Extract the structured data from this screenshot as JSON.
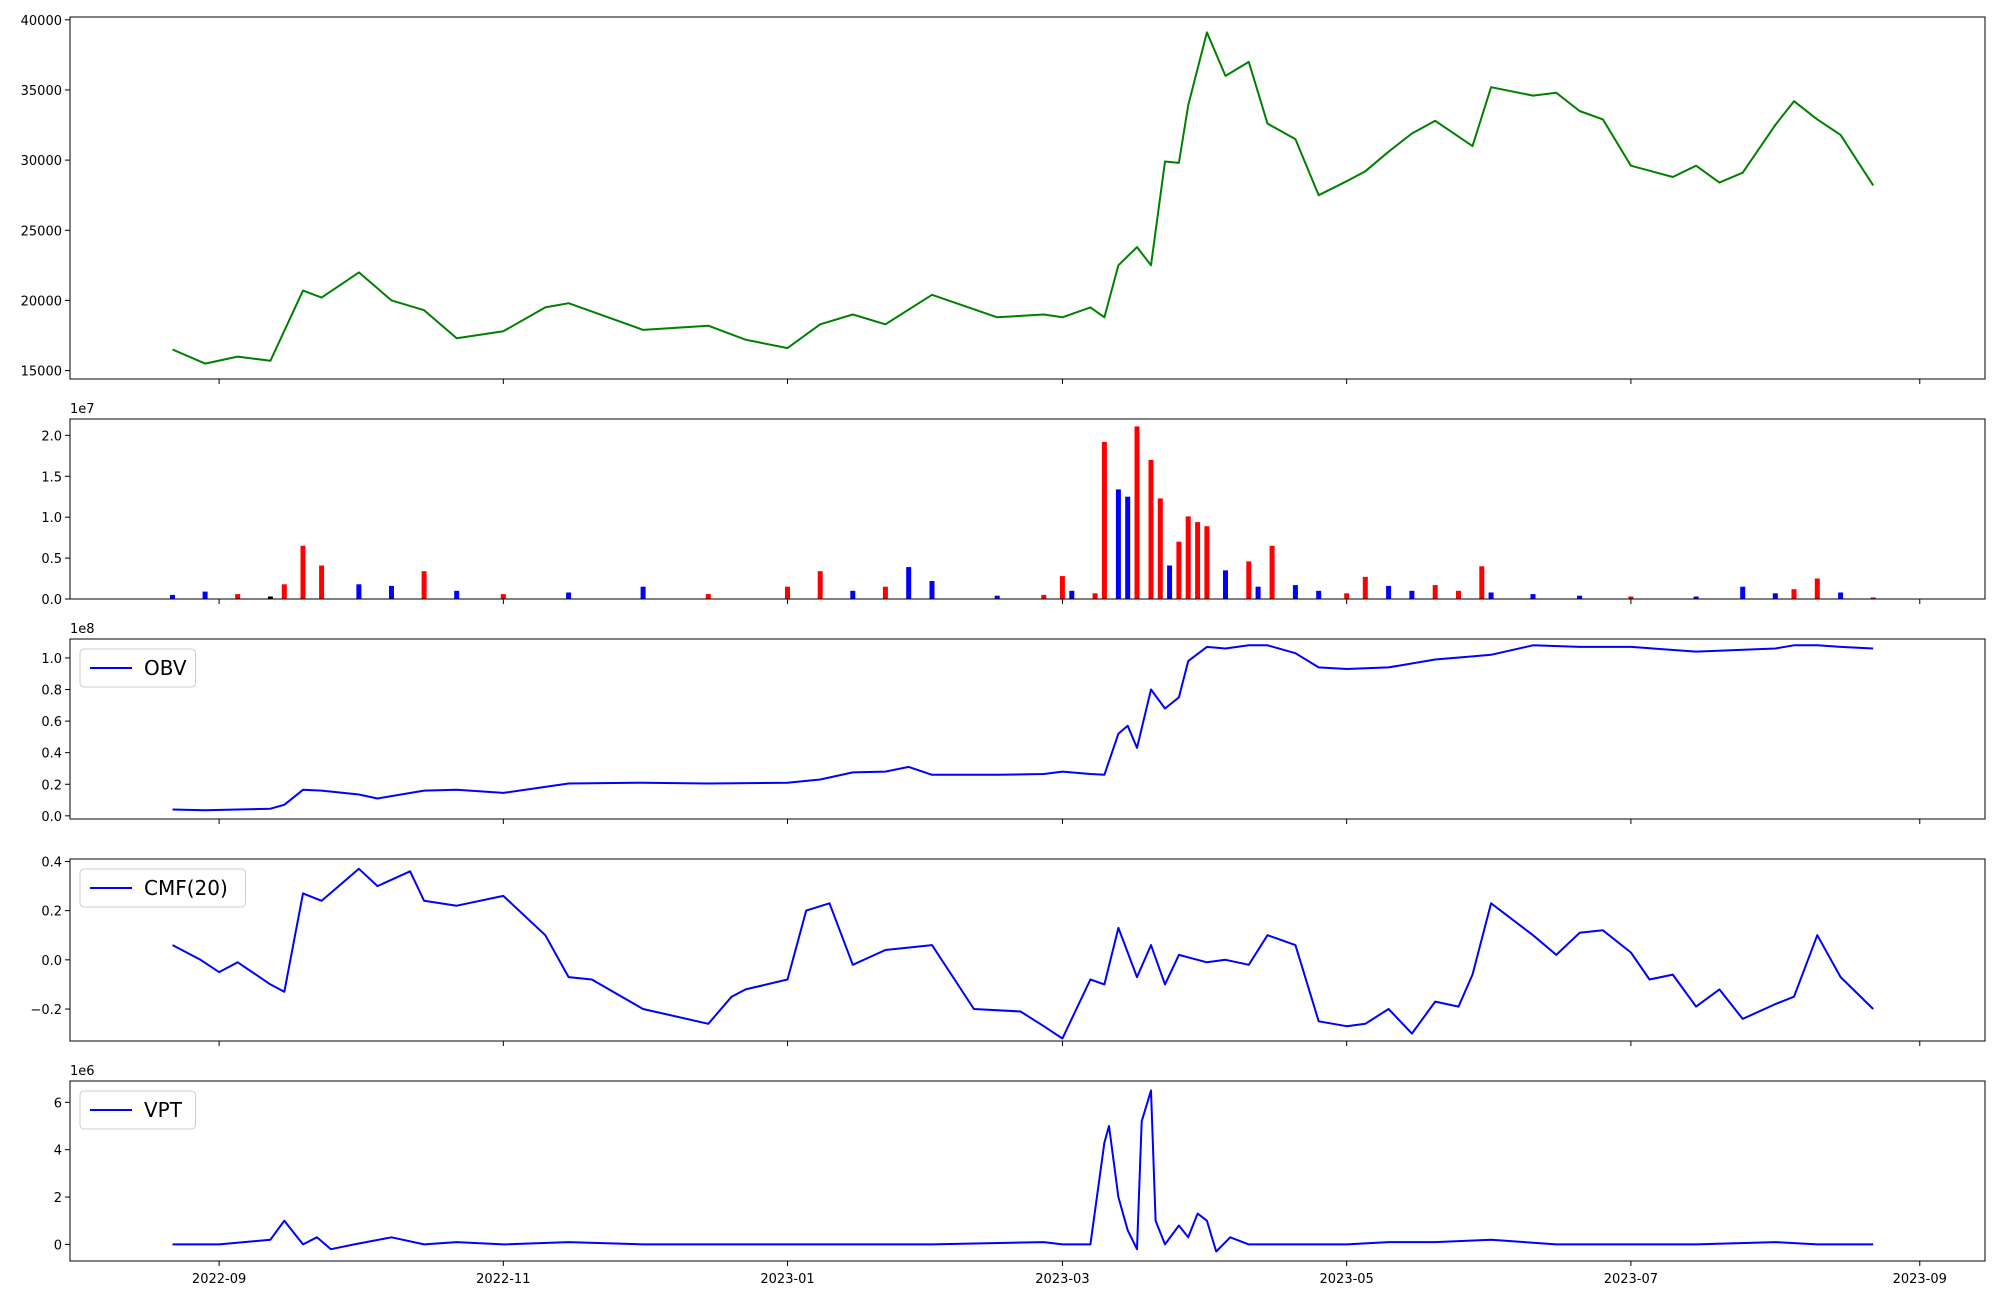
{
  "chart_data": [
    {
      "id": "price",
      "type": "line",
      "color": "#008000",
      "ylim": [
        14400,
        40200
      ],
      "yticks": [
        15000,
        20000,
        25000,
        30000,
        35000,
        40000
      ],
      "ytick_labels": [
        "15000",
        "20000",
        "25000",
        "30000",
        "35000",
        "40000"
      ],
      "multiplier": "",
      "legend": "",
      "x_dates": [
        "2022-08-22",
        "2022-08-29",
        "2022-09-05",
        "2022-09-12",
        "2022-09-19",
        "2022-09-23",
        "2022-10-01",
        "2022-10-08",
        "2022-10-15",
        "2022-10-22",
        "2022-11-01",
        "2022-11-10",
        "2022-11-15",
        "2022-12-01",
        "2022-12-15",
        "2022-12-23",
        "2023-01-01",
        "2023-01-08",
        "2023-01-15",
        "2023-01-22",
        "2023-02-01",
        "2023-02-15",
        "2023-02-25",
        "2023-03-01",
        "2023-03-07",
        "2023-03-10",
        "2023-03-13",
        "2023-03-17",
        "2023-03-20",
        "2023-03-23",
        "2023-03-26",
        "2023-03-28",
        "2023-04-01",
        "2023-04-05",
        "2023-04-10",
        "2023-04-14",
        "2023-04-20",
        "2023-04-25",
        "2023-05-01",
        "2023-05-05",
        "2023-05-10",
        "2023-05-15",
        "2023-05-20",
        "2023-05-28",
        "2023-06-01",
        "2023-06-10",
        "2023-06-15",
        "2023-06-20",
        "2023-06-25",
        "2023-07-01",
        "2023-07-10",
        "2023-07-15",
        "2023-07-20",
        "2023-07-25",
        "2023-08-01",
        "2023-08-05",
        "2023-08-10",
        "2023-08-15",
        "2023-08-22"
      ],
      "values": [
        16500,
        15500,
        16000,
        15700,
        20700,
        20200,
        22000,
        20000,
        19300,
        17300,
        17800,
        19500,
        19800,
        17900,
        18200,
        17200,
        16600,
        18300,
        19000,
        18300,
        20400,
        18800,
        19000,
        18800,
        19500,
        18800,
        22500,
        23800,
        22500,
        29900,
        29800,
        33900,
        39100,
        36000,
        37000,
        32600,
        31500,
        27500,
        28500,
        29200,
        30600,
        31900,
        32800,
        31000,
        35200,
        34600,
        34800,
        33500,
        32900,
        29600,
        28800,
        29600,
        28400,
        29100,
        32500,
        34200,
        32900,
        31800,
        28200
      ]
    },
    {
      "id": "volume",
      "type": "bar",
      "ylim": [
        0,
        22000000
      ],
      "yticks": [
        0,
        5000000,
        10000000,
        15000000,
        20000000
      ],
      "ytick_labels": [
        "0.0",
        "0.5",
        "1.0",
        "1.5",
        "2.0"
      ],
      "multiplier": "1e7",
      "legend": "",
      "bar_colors": {
        "up": "#0000ff",
        "down": "#ff0000",
        "neutral": "#000000"
      },
      "x_dates": [
        "2022-08-22",
        "2022-08-29",
        "2022-09-05",
        "2022-09-12",
        "2022-09-15",
        "2022-09-19",
        "2022-09-23",
        "2022-10-01",
        "2022-10-08",
        "2022-10-15",
        "2022-10-22",
        "2022-11-01",
        "2022-11-15",
        "2022-12-01",
        "2022-12-15",
        "2023-01-01",
        "2023-01-08",
        "2023-01-15",
        "2023-01-22",
        "2023-01-27",
        "2023-02-01",
        "2023-02-15",
        "2023-02-25",
        "2023-03-01",
        "2023-03-03",
        "2023-03-08",
        "2023-03-10",
        "2023-03-13",
        "2023-03-15",
        "2023-03-17",
        "2023-03-20",
        "2023-03-22",
        "2023-03-24",
        "2023-03-26",
        "2023-03-28",
        "2023-03-30",
        "2023-04-01",
        "2023-04-05",
        "2023-04-10",
        "2023-04-12",
        "2023-04-15",
        "2023-04-20",
        "2023-04-25",
        "2023-05-01",
        "2023-05-05",
        "2023-05-10",
        "2023-05-15",
        "2023-05-20",
        "2023-05-25",
        "2023-05-30",
        "2023-06-01",
        "2023-06-10",
        "2023-06-20",
        "2023-07-01",
        "2023-07-15",
        "2023-07-25",
        "2023-08-01",
        "2023-08-05",
        "2023-08-10",
        "2023-08-15",
        "2023-08-22"
      ],
      "values": [
        500000,
        900000,
        600000,
        300000,
        1800000,
        6500000,
        4100000,
        1800000,
        1600000,
        3400000,
        1000000,
        600000,
        800000,
        1500000,
        600000,
        1500000,
        3400000,
        1000000,
        1500000,
        3900000,
        2200000,
        400000,
        500000,
        2800000,
        1000000,
        700000,
        19200000,
        13400000,
        12500000,
        21100000,
        17000000,
        12300000,
        4100000,
        7000000,
        10100000,
        9400000,
        8900000,
        3500000,
        4600000,
        1500000,
        6500000,
        1700000,
        1000000,
        700000,
        2700000,
        1600000,
        1000000,
        1700000,
        1000000,
        4000000,
        800000,
        600000,
        400000,
        300000,
        300000,
        1500000,
        700000,
        1200000,
        2500000,
        800000,
        200000
      ],
      "directions": [
        "up",
        "up",
        "down",
        "neutral",
        "down",
        "down",
        "down",
        "up",
        "up",
        "down",
        "up",
        "down",
        "up",
        "up",
        "down",
        "down",
        "down",
        "up",
        "down",
        "up",
        "up",
        "up",
        "down",
        "down",
        "up",
        "down",
        "down",
        "up",
        "up",
        "down",
        "down",
        "down",
        "up",
        "down",
        "down",
        "down",
        "down",
        "up",
        "down",
        "up",
        "down",
        "up",
        "up",
        "down",
        "down",
        "up",
        "up",
        "down",
        "down",
        "down",
        "up",
        "up",
        "up",
        "down",
        "up",
        "up",
        "up",
        "down",
        "down",
        "up",
        "down"
      ]
    },
    {
      "id": "obv",
      "type": "line",
      "color": "#0000ff",
      "ylim": [
        -2000000,
        112000000
      ],
      "yticks": [
        0,
        20000000,
        40000000,
        60000000,
        80000000,
        100000000
      ],
      "ytick_labels": [
        "0.0",
        "0.2",
        "0.4",
        "0.6",
        "0.8",
        "1.0"
      ],
      "multiplier": "1e8",
      "legend": "OBV",
      "x_dates": [
        "2022-08-22",
        "2022-08-29",
        "2022-09-05",
        "2022-09-12",
        "2022-09-15",
        "2022-09-19",
        "2022-09-23",
        "2022-10-01",
        "2022-10-05",
        "2022-10-15",
        "2022-10-22",
        "2022-11-01",
        "2022-11-15",
        "2022-12-01",
        "2022-12-15",
        "2023-01-01",
        "2023-01-08",
        "2023-01-15",
        "2023-01-22",
        "2023-01-27",
        "2023-02-01",
        "2023-02-15",
        "2023-02-25",
        "2023-03-01",
        "2023-03-07",
        "2023-03-10",
        "2023-03-13",
        "2023-03-15",
        "2023-03-17",
        "2023-03-20",
        "2023-03-23",
        "2023-03-26",
        "2023-03-28",
        "2023-04-01",
        "2023-04-05",
        "2023-04-10",
        "2023-04-14",
        "2023-04-20",
        "2023-04-25",
        "2023-05-01",
        "2023-05-10",
        "2023-05-20",
        "2023-05-28",
        "2023-06-01",
        "2023-06-10",
        "2023-06-20",
        "2023-07-01",
        "2023-07-15",
        "2023-08-01",
        "2023-08-05",
        "2023-08-10",
        "2023-08-15",
        "2023-08-22"
      ],
      "values": [
        4000000,
        3500000,
        4000000,
        4500000,
        7000000,
        16500000,
        16000000,
        13500000,
        11000000,
        16000000,
        16500000,
        14500000,
        20500000,
        21000000,
        20500000,
        21000000,
        23000000,
        27500000,
        28000000,
        31000000,
        26000000,
        26000000,
        26500000,
        28000000,
        26500000,
        26000000,
        52000000,
        57000000,
        43000000,
        80000000,
        68000000,
        75000000,
        98000000,
        107000000,
        106000000,
        108000000,
        108000000,
        103000000,
        94000000,
        93000000,
        94000000,
        99000000,
        101000000,
        102000000,
        108000000,
        107000000,
        107000000,
        104000000,
        106000000,
        108000000,
        108000000,
        107000000,
        106000000
      ]
    },
    {
      "id": "cmf",
      "type": "line",
      "color": "#0000ff",
      "ylim": [
        -0.33,
        0.41
      ],
      "yticks": [
        -0.2,
        0.0,
        0.2,
        0.4
      ],
      "ytick_labels": [
        "−0.2",
        "0.0",
        "0.2",
        "0.4"
      ],
      "multiplier": "",
      "legend": "CMF(20)",
      "x_dates": [
        "2022-08-22",
        "2022-08-28",
        "2022-09-01",
        "2022-09-05",
        "2022-09-12",
        "2022-09-15",
        "2022-09-19",
        "2022-09-23",
        "2022-10-01",
        "2022-10-05",
        "2022-10-12",
        "2022-10-15",
        "2022-10-22",
        "2022-11-01",
        "2022-11-10",
        "2022-11-15",
        "2022-11-20",
        "2022-12-01",
        "2022-12-15",
        "2022-12-20",
        "2022-12-23",
        "2023-01-01",
        "2023-01-05",
        "2023-01-10",
        "2023-01-15",
        "2023-01-22",
        "2023-02-01",
        "2023-02-10",
        "2023-02-20",
        "2023-02-25",
        "2023-03-01",
        "2023-03-07",
        "2023-03-10",
        "2023-03-13",
        "2023-03-17",
        "2023-03-20",
        "2023-03-23",
        "2023-03-26",
        "2023-04-01",
        "2023-04-05",
        "2023-04-10",
        "2023-04-14",
        "2023-04-20",
        "2023-04-25",
        "2023-05-01",
        "2023-05-05",
        "2023-05-10",
        "2023-05-15",
        "2023-05-20",
        "2023-05-25",
        "2023-05-28",
        "2023-06-01",
        "2023-06-10",
        "2023-06-15",
        "2023-06-20",
        "2023-06-25",
        "2023-07-01",
        "2023-07-05",
        "2023-07-10",
        "2023-07-15",
        "2023-07-20",
        "2023-07-25",
        "2023-08-01",
        "2023-08-05",
        "2023-08-10",
        "2023-08-15",
        "2023-08-22"
      ],
      "values": [
        0.06,
        0.0,
        -0.05,
        -0.01,
        -0.1,
        -0.13,
        0.27,
        0.24,
        0.37,
        0.3,
        0.36,
        0.24,
        0.22,
        0.26,
        0.1,
        -0.07,
        -0.08,
        -0.2,
        -0.26,
        -0.15,
        -0.12,
        -0.08,
        0.2,
        0.23,
        -0.02,
        0.04,
        0.06,
        -0.2,
        -0.21,
        -0.27,
        -0.32,
        -0.08,
        -0.1,
        0.13,
        -0.07,
        0.06,
        -0.1,
        0.02,
        -0.01,
        0.0,
        -0.02,
        0.1,
        0.06,
        -0.25,
        -0.27,
        -0.26,
        -0.2,
        -0.3,
        -0.17,
        -0.19,
        -0.06,
        0.23,
        0.1,
        0.02,
        0.11,
        0.12,
        0.03,
        -0.08,
        -0.06,
        -0.19,
        -0.12,
        -0.24,
        -0.18,
        -0.15,
        0.1,
        -0.07,
        -0.2
      ]
    },
    {
      "id": "vpt",
      "type": "line",
      "color": "#0000ff",
      "ylim": [
        -700000,
        6900000
      ],
      "yticks": [
        0,
        2000000,
        4000000,
        6000000
      ],
      "ytick_labels": [
        "0",
        "2",
        "4",
        "6"
      ],
      "multiplier": "1e6",
      "legend": "VPT",
      "x_dates": [
        "2022-08-22",
        "2022-09-01",
        "2022-09-12",
        "2022-09-15",
        "2022-09-19",
        "2022-09-22",
        "2022-09-25",
        "2022-09-30",
        "2022-10-08",
        "2022-10-15",
        "2022-10-22",
        "2022-11-01",
        "2022-11-15",
        "2022-12-01",
        "2022-12-15",
        "2023-01-01",
        "2023-02-01",
        "2023-02-25",
        "2023-03-01",
        "2023-03-07",
        "2023-03-10",
        "2023-03-11",
        "2023-03-13",
        "2023-03-15",
        "2023-03-17",
        "2023-03-18",
        "2023-03-20",
        "2023-03-21",
        "2023-03-23",
        "2023-03-26",
        "2023-03-28",
        "2023-03-30",
        "2023-04-01",
        "2023-04-03",
        "2023-04-06",
        "2023-04-10",
        "2023-04-15",
        "2023-04-20",
        "2023-05-01",
        "2023-05-10",
        "2023-05-20",
        "2023-06-01",
        "2023-06-15",
        "2023-07-01",
        "2023-07-15",
        "2023-08-01",
        "2023-08-10",
        "2023-08-22"
      ],
      "values": [
        0,
        0,
        200000,
        1000000,
        0,
        300000,
        -200000,
        0,
        300000,
        0,
        100000,
        0,
        100000,
        0,
        0,
        0,
        0,
        100000,
        0,
        0,
        4300000,
        5000000,
        2000000,
        600000,
        -200000,
        5200000,
        6500000,
        1000000,
        0,
        800000,
        300000,
        1300000,
        1000000,
        -300000,
        300000,
        0,
        0,
        0,
        0,
        100000,
        100000,
        200000,
        0,
        0,
        0,
        100000,
        0,
        0
      ]
    }
  ],
  "x_axis": {
    "tick_dates": [
      "2022-09-01",
      "2022-11-01",
      "2023-01-01",
      "2023-03-01",
      "2023-05-01",
      "2023-07-01",
      "2023-09-01"
    ],
    "tick_labels": [
      "2022-09",
      "2022-11",
      "2023-01",
      "2023-03",
      "2023-05",
      "2023-07",
      "2023-09"
    ],
    "range_dates": [
      "2022-07-31",
      "2023-09-15"
    ]
  }
}
